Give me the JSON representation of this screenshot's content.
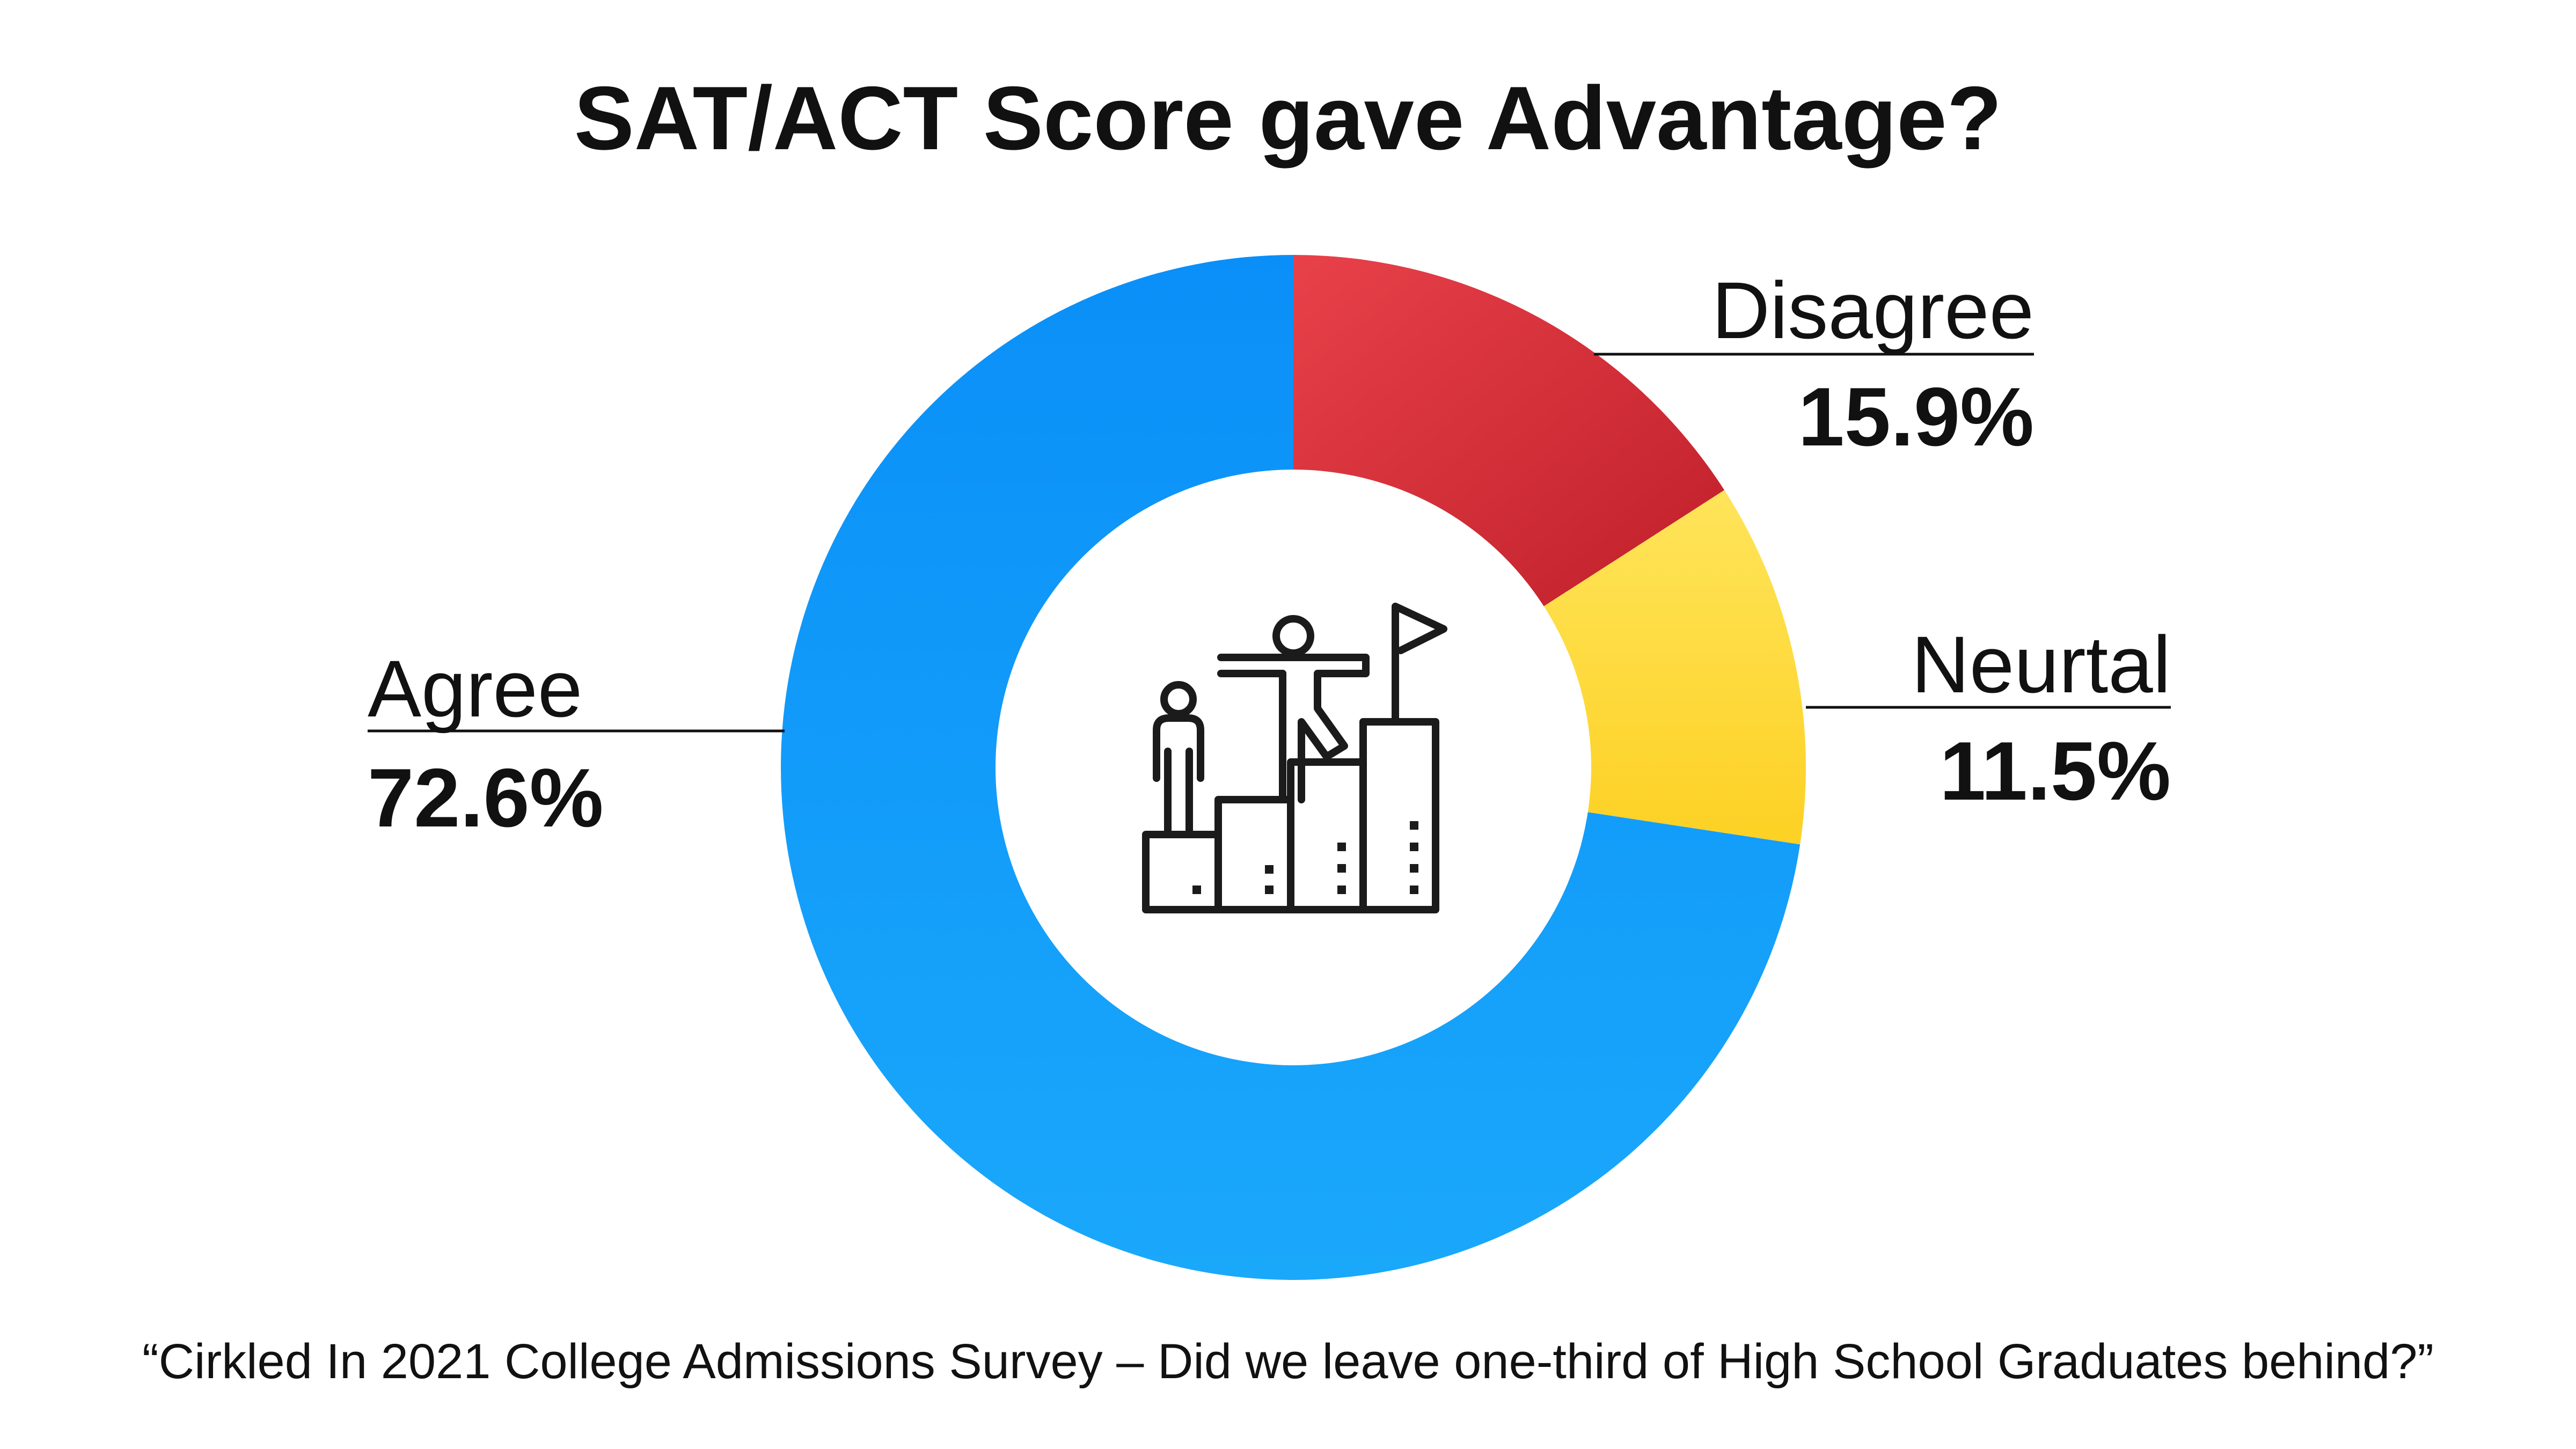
{
  "chart_data": {
    "type": "pie",
    "variant": "donut",
    "title": "SAT/ACT Score gave Advantage?",
    "slices": [
      {
        "label": "Disagree",
        "value": 15.9,
        "display": "15.9%",
        "color": "#d9303a"
      },
      {
        "label": "Neurtal",
        "value": 11.5,
        "display": "11.5%",
        "color": "#fdd835"
      },
      {
        "label": "Agree",
        "value": 72.6,
        "display": "72.6%",
        "color": "#1a9cf5"
      }
    ],
    "center_icon": "podium-people-flag-icon",
    "footnote": "“Cirkled In 2021 College Admissions Survey – Did we leave one-third of High School Graduates behind?”"
  }
}
